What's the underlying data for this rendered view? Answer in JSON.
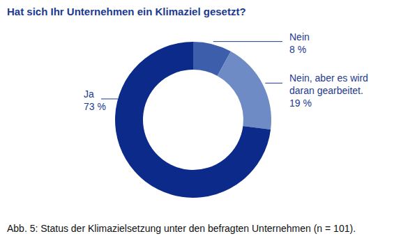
{
  "chart_data": {
    "type": "donut",
    "title": "Hat sich Ihr Unternehmen ein Klimaziel gesetzt?",
    "caption": "Abb. 5: Status der Klimazielsetzung unter den befragten Unternehmen (n = 101).",
    "categories": [
      "Nein",
      "Nein, aber es wird daran gearbeitet.",
      "Ja"
    ],
    "values": [
      8,
      19,
      73
    ],
    "value_labels": [
      "8 %",
      "19 %",
      "73 %"
    ],
    "colors": [
      "#3d5fab",
      "#6f8bc6",
      "#0b2a8a"
    ],
    "data_labels": true
  }
}
